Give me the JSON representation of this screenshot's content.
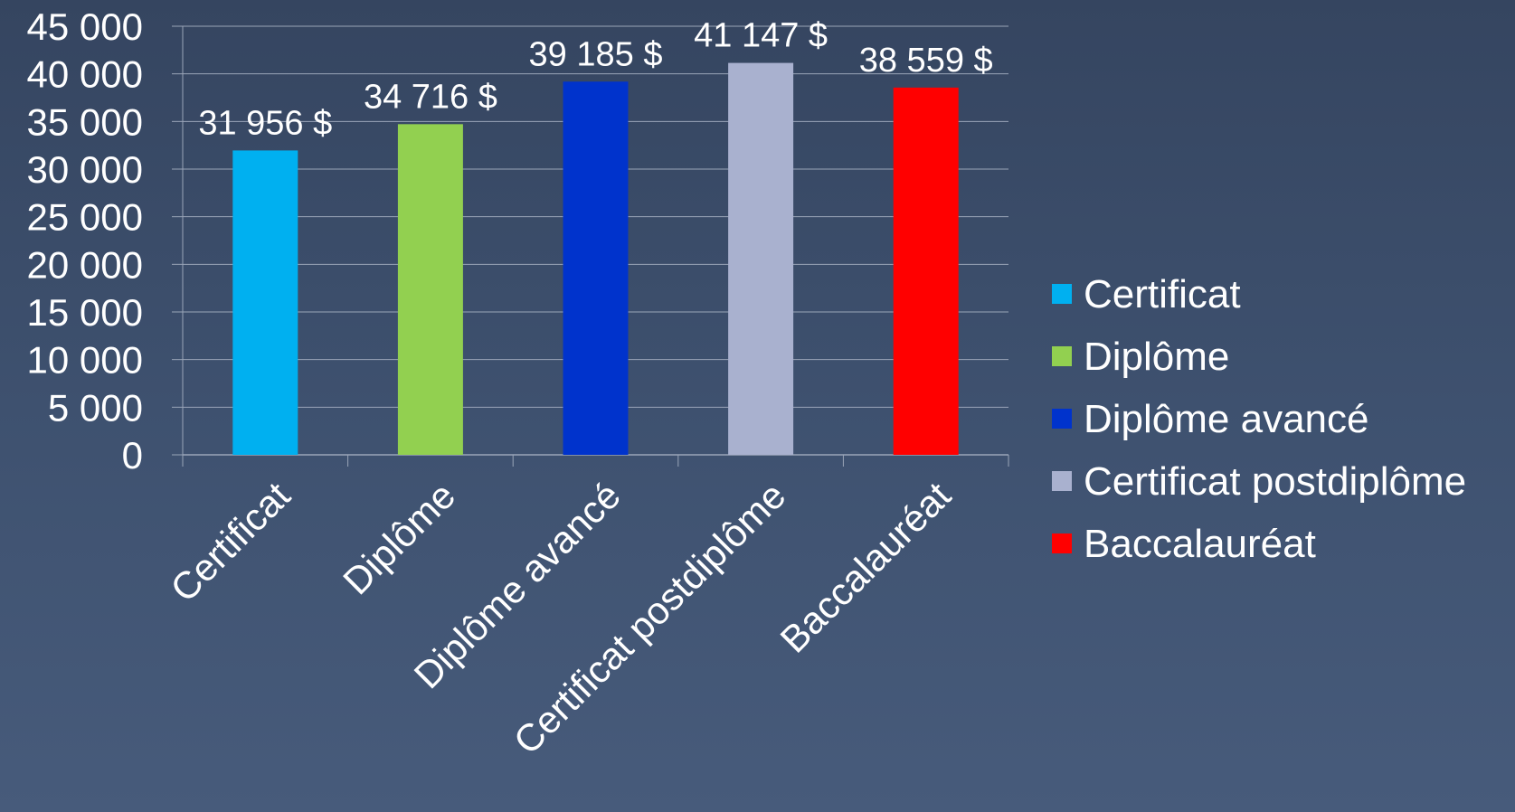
{
  "chart_data": {
    "type": "bar",
    "categories": [
      "Certificat",
      "Diplôme",
      "Diplôme avancé",
      "Certificat postdiplôme",
      "Baccalauréat"
    ],
    "values": [
      31956,
      34716,
      39185,
      41147,
      38559
    ],
    "data_labels": [
      "31 956 $",
      "34 716 $",
      "39 185 $",
      "41 147 $",
      "38 559 $"
    ],
    "colors": [
      "#00b0f0",
      "#92d050",
      "#0033cc",
      "#a9b1cf",
      "#ff0000"
    ],
    "ylim": [
      0,
      45000
    ],
    "y_ticks": [
      0,
      5000,
      10000,
      15000,
      20000,
      25000,
      30000,
      35000,
      40000,
      45000
    ],
    "y_tick_labels": [
      "0",
      "5 000",
      "10 000",
      "15 000",
      "20 000",
      "25 000",
      "30 000",
      "35 000",
      "40 000",
      "45 000"
    ],
    "grid": true,
    "legend_position": "right",
    "legend": [
      "Certificat",
      "Diplôme",
      "Diplôme avancé",
      "Certificat postdiplôme",
      "Baccalauréat"
    ],
    "title": "",
    "xlabel": "",
    "ylabel": ""
  }
}
